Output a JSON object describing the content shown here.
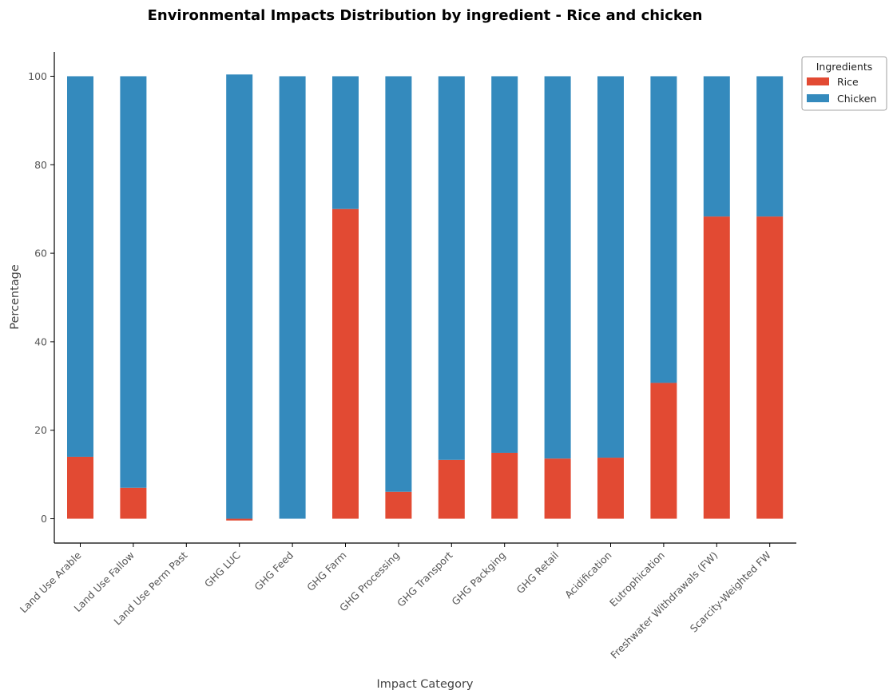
{
  "chart_data": {
    "type": "bar",
    "stacked": true,
    "title": "Environmental Impacts Distribution by ingredient - Rice and chicken",
    "xlabel": "Impact Category",
    "ylabel": "Percentage",
    "ylim": [
      -5.5,
      105.5
    ],
    "yticks": [
      0,
      20,
      40,
      60,
      80,
      100
    ],
    "grid": false,
    "legend": {
      "title": "Ingredients",
      "placement": "top-right-outside"
    },
    "categories": [
      "Land Use Arable",
      "Land Use Fallow",
      "Land Use Perm Past",
      "GHG LUC",
      "GHG Feed",
      "GHG Farm",
      "GHG Processing",
      "GHG Transport",
      "GHG Packging",
      "GHG Retail",
      "Acidification",
      "Eutrophication",
      "Freshwater Withdrawals (FW)",
      "Scarcity-Weighted FW"
    ],
    "series": [
      {
        "name": "Rice",
        "color": "#e24a33",
        "values": [
          14.0,
          7.0,
          0,
          -0.4,
          0,
          70.0,
          6.1,
          13.3,
          14.9,
          13.6,
          13.8,
          30.7,
          68.3,
          68.3
        ]
      },
      {
        "name": "Chicken",
        "color": "#348abd",
        "values": [
          86.0,
          93.0,
          0,
          100.4,
          100.0,
          30.0,
          93.9,
          86.7,
          85.1,
          86.4,
          86.2,
          69.3,
          31.7,
          31.7
        ]
      }
    ]
  }
}
